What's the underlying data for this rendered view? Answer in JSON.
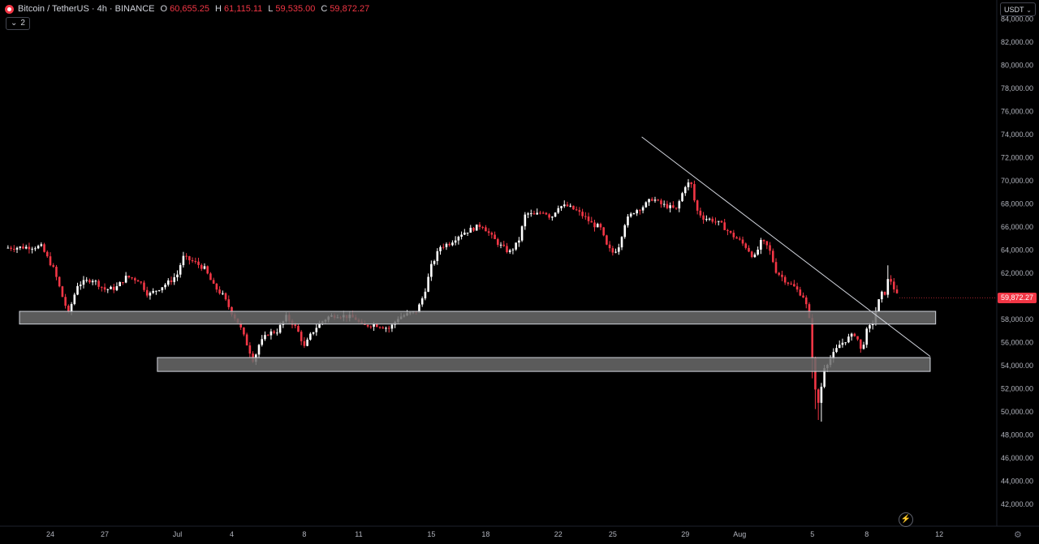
{
  "legend": {
    "symbol": "Bitcoin / TetherUS · 4h · BINANCE",
    "o_label": "O",
    "o_value": "60,655.25",
    "h_label": "H",
    "h_value": "61,115.11",
    "l_label": "L",
    "l_value": "59,535.00",
    "c_label": "C",
    "c_value": "59,872.27"
  },
  "indicator_toggle": {
    "chevron": "⌄",
    "count": "2"
  },
  "currency_button": {
    "label": "USDT",
    "chevron": "⌄"
  },
  "last_price_label": "59,872.27",
  "icons": {
    "bolt": "bolt-icon",
    "settings": "gear-icon"
  },
  "colors": {
    "up": "#ffffff",
    "down": "#f23645",
    "zone_fill": "#6b6b6b",
    "trendline": "#d1d4dc",
    "background": "#000000"
  },
  "chart_data": {
    "type": "candlestick",
    "interval": "4h",
    "ylim": [
      41000,
      84500
    ],
    "y_ticks": [
      42000,
      44000,
      46000,
      48000,
      50000,
      52000,
      54000,
      56000,
      58000,
      60000,
      62000,
      64000,
      66000,
      68000,
      70000,
      72000,
      74000,
      76000,
      78000,
      80000,
      82000,
      84000
    ],
    "y_tick_labels": [
      "42,000.00",
      "44,000.00",
      "46,000.00",
      "48,000.00",
      "50,000.00",
      "52,000.00",
      "54,000.00",
      "56,000.00",
      "58,000.00",
      "60,000.00",
      "62,000.00",
      "64,000.00",
      "66,000.00",
      "68,000.00",
      "70,000.00",
      "72,000.00",
      "74,000.00",
      "76,000.00",
      "78,000.00",
      "80,000.00",
      "82,000.00",
      "84,000.00"
    ],
    "x_ticks": [
      {
        "label": "24",
        "day": 0
      },
      {
        "label": "27",
        "day": 3
      },
      {
        "label": "Jul",
        "day": 7
      },
      {
        "label": "4",
        "day": 10
      },
      {
        "label": "8",
        "day": 14
      },
      {
        "label": "11",
        "day": 17
      },
      {
        "label": "15",
        "day": 21
      },
      {
        "label": "18",
        "day": 24
      },
      {
        "label": "22",
        "day": 28
      },
      {
        "label": "25",
        "day": 31
      },
      {
        "label": "29",
        "day": 35
      },
      {
        "label": "Aug",
        "day": 38
      },
      {
        "label": "5",
        "day": 42
      },
      {
        "label": "8",
        "day": 45
      },
      {
        "label": "12",
        "day": 49
      }
    ],
    "anchors": [
      [
        -2.5,
        64200
      ],
      [
        -0.5,
        64300
      ],
      [
        0.2,
        62300
      ],
      [
        0.7,
        59800
      ],
      [
        1.0,
        58500
      ],
      [
        1.5,
        61000
      ],
      [
        2.3,
        61500
      ],
      [
        3.0,
        60600
      ],
      [
        3.6,
        60700
      ],
      [
        4.2,
        61700
      ],
      [
        4.9,
        61400
      ],
      [
        5.4,
        60100
      ],
      [
        6.0,
        60700
      ],
      [
        6.6,
        61300
      ],
      [
        7.0,
        61900
      ],
      [
        7.3,
        63400
      ],
      [
        7.6,
        63200
      ],
      [
        8.0,
        62900
      ],
      [
        8.5,
        62400
      ],
      [
        9.0,
        60900
      ],
      [
        9.5,
        60100
      ],
      [
        10.0,
        58600
      ],
      [
        10.4,
        57600
      ],
      [
        10.8,
        56000
      ],
      [
        11.2,
        54400
      ],
      [
        11.5,
        55800
      ],
      [
        12.0,
        56800
      ],
      [
        12.5,
        57000
      ],
      [
        13.0,
        58200
      ],
      [
        13.4,
        57600
      ],
      [
        13.7,
        56800
      ],
      [
        14.0,
        55600
      ],
      [
        14.4,
        56800
      ],
      [
        14.8,
        57600
      ],
      [
        15.3,
        58200
      ],
      [
        15.8,
        58400
      ],
      [
        16.2,
        58300
      ],
      [
        16.8,
        58100
      ],
      [
        17.2,
        57400
      ],
      [
        17.8,
        57600
      ],
      [
        18.3,
        57400
      ],
      [
        18.7,
        57200
      ],
      [
        19.2,
        58200
      ],
      [
        19.8,
        58500
      ],
      [
        20.2,
        58700
      ],
      [
        20.6,
        60200
      ],
      [
        21.0,
        62600
      ],
      [
        21.5,
        64300
      ],
      [
        22.0,
        64600
      ],
      [
        22.6,
        65400
      ],
      [
        23.2,
        65800
      ],
      [
        23.8,
        66200
      ],
      [
        24.3,
        65200
      ],
      [
        24.8,
        64400
      ],
      [
        25.3,
        63800
      ],
      [
        25.8,
        64700
      ],
      [
        26.2,
        67200
      ],
      [
        26.7,
        67000
      ],
      [
        27.2,
        67400
      ],
      [
        27.6,
        66800
      ],
      [
        28.0,
        67800
      ],
      [
        28.5,
        67800
      ],
      [
        29.0,
        67400
      ],
      [
        29.5,
        66800
      ],
      [
        29.9,
        66200
      ],
      [
        30.3,
        66000
      ],
      [
        30.7,
        64200
      ],
      [
        31.0,
        63800
      ],
      [
        31.3,
        64200
      ],
      [
        31.7,
        66500
      ],
      [
        32.2,
        67400
      ],
      [
        32.7,
        67800
      ],
      [
        33.2,
        68500
      ],
      [
        33.6,
        68000
      ],
      [
        34.0,
        67800
      ],
      [
        34.5,
        67500
      ],
      [
        35.0,
        69600
      ],
      [
        35.3,
        69900
      ],
      [
        35.6,
        67500
      ],
      [
        36.0,
        66800
      ],
      [
        36.5,
        66600
      ],
      [
        37.0,
        66200
      ],
      [
        37.5,
        65400
      ],
      [
        38.0,
        64800
      ],
      [
        38.4,
        64200
      ],
      [
        38.8,
        63300
      ],
      [
        39.2,
        64800
      ],
      [
        39.6,
        64200
      ],
      [
        40.0,
        62200
      ],
      [
        40.5,
        61400
      ],
      [
        41.0,
        60800
      ],
      [
        41.5,
        60000
      ],
      [
        41.8,
        58600
      ],
      [
        42.0,
        54800
      ],
      [
        42.2,
        51200
      ],
      [
        42.4,
        50600
      ],
      [
        42.6,
        53800
      ],
      [
        43.0,
        54600
      ],
      [
        43.5,
        55800
      ],
      [
        44.0,
        56400
      ],
      [
        44.4,
        56800
      ],
      [
        44.7,
        55200
      ],
      [
        45.0,
        57000
      ],
      [
        45.3,
        57600
      ],
      [
        45.6,
        59300
      ],
      [
        45.8,
        60200
      ],
      [
        46.0,
        60300
      ],
      [
        46.2,
        61600
      ],
      [
        46.4,
        61200
      ],
      [
        46.6,
        60200
      ],
      [
        46.8,
        59872.27
      ]
    ],
    "last_price": 59872.27,
    "support_zones": [
      {
        "from_day": -1.7,
        "to_day": 48.8,
        "low": 57600,
        "high": 58700
      },
      {
        "from_day": 5.9,
        "to_day": 48.5,
        "low": 53500,
        "high": 54700
      }
    ],
    "trendline": {
      "from": [
        32.6,
        73800
      ],
      "to": [
        48.5,
        54800
      ]
    }
  }
}
